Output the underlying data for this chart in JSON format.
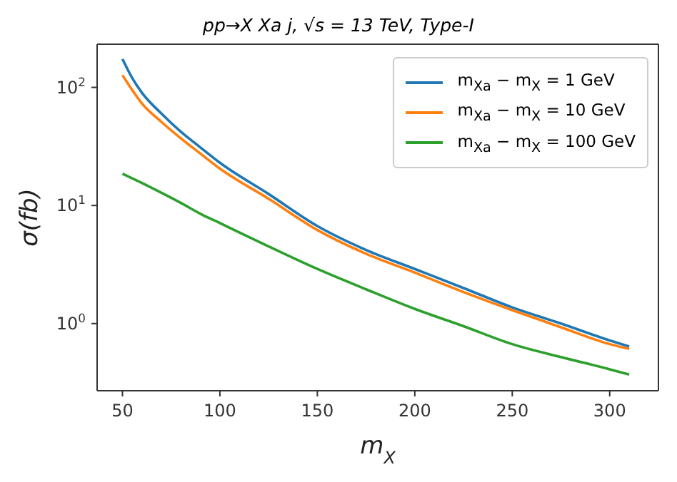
{
  "chart_data": {
    "type": "line",
    "title": "pp→X Xa j,  √s = 13 TeV, Type-I",
    "xlabel": "m$_{X}$",
    "ylabel": "σ(fb)",
    "x": [
      50,
      55,
      60,
      70,
      80,
      90,
      100,
      125,
      150,
      175,
      200,
      225,
      250,
      275,
      300,
      310
    ],
    "series": [
      {
        "name": "m$_{Xa}$ − m$_{X}$ = 1 GeV",
        "color": "#1f77b4",
        "values": [
          174,
          120,
          90,
          60,
          42,
          31,
          23,
          12.5,
          6.7,
          4.2,
          2.9,
          2.0,
          1.37,
          1.0,
          0.72,
          0.64
        ]
      },
      {
        "name": "m$_{Xa}$ − m$_{X}$ = 10 GeV",
        "color": "#ff7f0e",
        "values": [
          127,
          95,
          73,
          51,
          37,
          27.5,
          20.5,
          11.4,
          6.2,
          3.9,
          2.7,
          1.85,
          1.3,
          0.93,
          0.67,
          0.61
        ]
      },
      {
        "name": "m$_{Xa}$ − m$_{X}$ = 100 GeV",
        "color": "#2ca02c",
        "values": [
          18.6,
          17,
          15.5,
          12.8,
          10.5,
          8.5,
          7.1,
          4.5,
          2.9,
          1.95,
          1.33,
          0.95,
          0.67,
          0.52,
          0.41,
          0.37
        ]
      }
    ],
    "xlim": [
      37,
      325
    ],
    "xticks": [
      50,
      100,
      150,
      200,
      250,
      300
    ],
    "ylim": [
      0.27,
      232
    ],
    "yticks": [
      {
        "value": 1,
        "label": "10$^{0}$"
      },
      {
        "value": 10,
        "label": "10$^{1}$"
      },
      {
        "value": 100,
        "label": "10$^{2}$"
      }
    ],
    "log": true,
    "grid": false,
    "legend": "top right",
    "marker": "none",
    "line_style": "solid"
  }
}
